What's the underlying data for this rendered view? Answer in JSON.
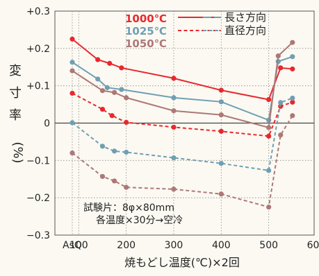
{
  "chart_data": {
    "type": "line",
    "x_categories_label": "AsQ",
    "x_ticks": [
      100,
      200,
      300,
      400,
      500,
      600
    ],
    "xlabel": "焼もどし温度(℃)×2回",
    "ylabel_chars": [
      "変",
      "寸",
      "率",
      "(%)"
    ],
    "y_ticks": [
      "+0.3",
      "+0.2",
      "+0.1",
      "0",
      "−0.1",
      "−0.2",
      "−0.3"
    ],
    "ylim": [
      -0.3,
      0.3
    ],
    "grid": "dotted",
    "legend": {
      "temps": [
        {
          "label": "1000℃",
          "color": "#e8282e"
        },
        {
          "label": "1025℃",
          "color": "#6f9fb3"
        },
        {
          "label": "1050℃",
          "color": "#ad7878"
        }
      ],
      "styles": [
        {
          "label": "長さ方向",
          "dash": "solid"
        },
        {
          "label": "直径方向",
          "dash": "dashed"
        }
      ]
    },
    "annotation": [
      "試験片：8φ×80mm",
      "各温度×30分→空冷"
    ],
    "series": [
      {
        "temp": "1000℃",
        "direction": "長さ方向",
        "color": "#e8282e",
        "dash": false,
        "points": [
          [
            "AsQ",
            0.225
          ],
          [
            140,
            0.17
          ],
          [
            165,
            0.16
          ],
          [
            190,
            0.148
          ],
          [
            300,
            0.12
          ],
          [
            400,
            0.088
          ],
          [
            500,
            0.063
          ],
          [
            525,
            0.148
          ],
          [
            550,
            0.145
          ]
        ]
      },
      {
        "temp": "1000℃",
        "direction": "直径方向",
        "color": "#e8282e",
        "dash": true,
        "points": [
          [
            "AsQ",
            0.08
          ],
          [
            150,
            0.037
          ],
          [
            170,
            0.02
          ],
          [
            200,
            0.002
          ],
          [
            300,
            -0.011
          ],
          [
            400,
            -0.022
          ],
          [
            500,
            -0.035
          ],
          [
            525,
            0.045
          ],
          [
            550,
            0.056
          ]
        ]
      },
      {
        "temp": "1025℃",
        "direction": "長さ方向",
        "color": "#6f9fb3",
        "dash": false,
        "points": [
          [
            "AsQ",
            0.163
          ],
          [
            140,
            0.118
          ],
          [
            160,
            0.095
          ],
          [
            190,
            0.09
          ],
          [
            300,
            0.068
          ],
          [
            400,
            0.057
          ],
          [
            500,
            0.008
          ],
          [
            520,
            0.165
          ],
          [
            550,
            0.178
          ]
        ]
      },
      {
        "temp": "1025℃",
        "direction": "直径方向",
        "color": "#6f9fb3",
        "dash": true,
        "points": [
          [
            "AsQ",
            0.001
          ],
          [
            150,
            -0.062
          ],
          [
            175,
            -0.075
          ],
          [
            200,
            -0.078
          ],
          [
            300,
            -0.093
          ],
          [
            400,
            -0.108
          ],
          [
            500,
            -0.127
          ],
          [
            525,
            0.055
          ],
          [
            550,
            0.067
          ]
        ]
      },
      {
        "temp": "1050℃",
        "direction": "長さ方向",
        "color": "#ad7878",
        "dash": false,
        "points": [
          [
            "AsQ",
            0.14
          ],
          [
            150,
            0.087
          ],
          [
            175,
            0.082
          ],
          [
            200,
            0.068
          ],
          [
            300,
            0.033
          ],
          [
            400,
            0.022
          ],
          [
            500,
            -0.012
          ],
          [
            520,
            0.18
          ],
          [
            550,
            0.216
          ]
        ]
      },
      {
        "temp": "1050℃",
        "direction": "直径方向",
        "color": "#ad7878",
        "dash": true,
        "points": [
          [
            "AsQ",
            -0.08
          ],
          [
            150,
            -0.143
          ],
          [
            175,
            -0.155
          ],
          [
            200,
            -0.172
          ],
          [
            300,
            -0.177
          ],
          [
            400,
            -0.19
          ],
          [
            500,
            -0.225
          ],
          [
            525,
            -0.032
          ],
          [
            550,
            0.02
          ]
        ]
      }
    ]
  }
}
